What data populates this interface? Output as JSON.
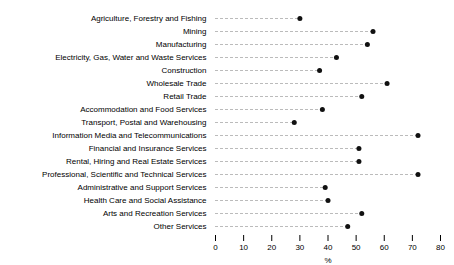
{
  "chart_data": {
    "type": "lollipop",
    "orientation": "horizontal",
    "categories": [
      "Agriculture, Forestry and Fishing",
      "Mining",
      "Manufacturing",
      "Electricity, Gas, Water and Waste Services",
      "Construction",
      "Wholesale Trade",
      "Retail Trade",
      "Accommodation and Food Services",
      "Transport, Postal and Warehousing",
      "Information Media and Telecommunications",
      "Financial and Insurance Services",
      "Rental, Hiring and Real Estate Services",
      "Professional, Scientific and Technical Services",
      "Administrative and Support Services",
      "Health Care and Social Assistance",
      "Arts and Recreation Services",
      "Other Services"
    ],
    "values": [
      30,
      56,
      54,
      43,
      37,
      61,
      52,
      38,
      28,
      72,
      51,
      51,
      72,
      39,
      40,
      52,
      47
    ],
    "xlabel": "%",
    "xlim": [
      0,
      80
    ],
    "xticks": [
      0,
      10,
      20,
      30,
      40,
      50,
      60,
      70,
      80
    ],
    "color": "#111111",
    "line_style": "dashed",
    "grid": false
  }
}
